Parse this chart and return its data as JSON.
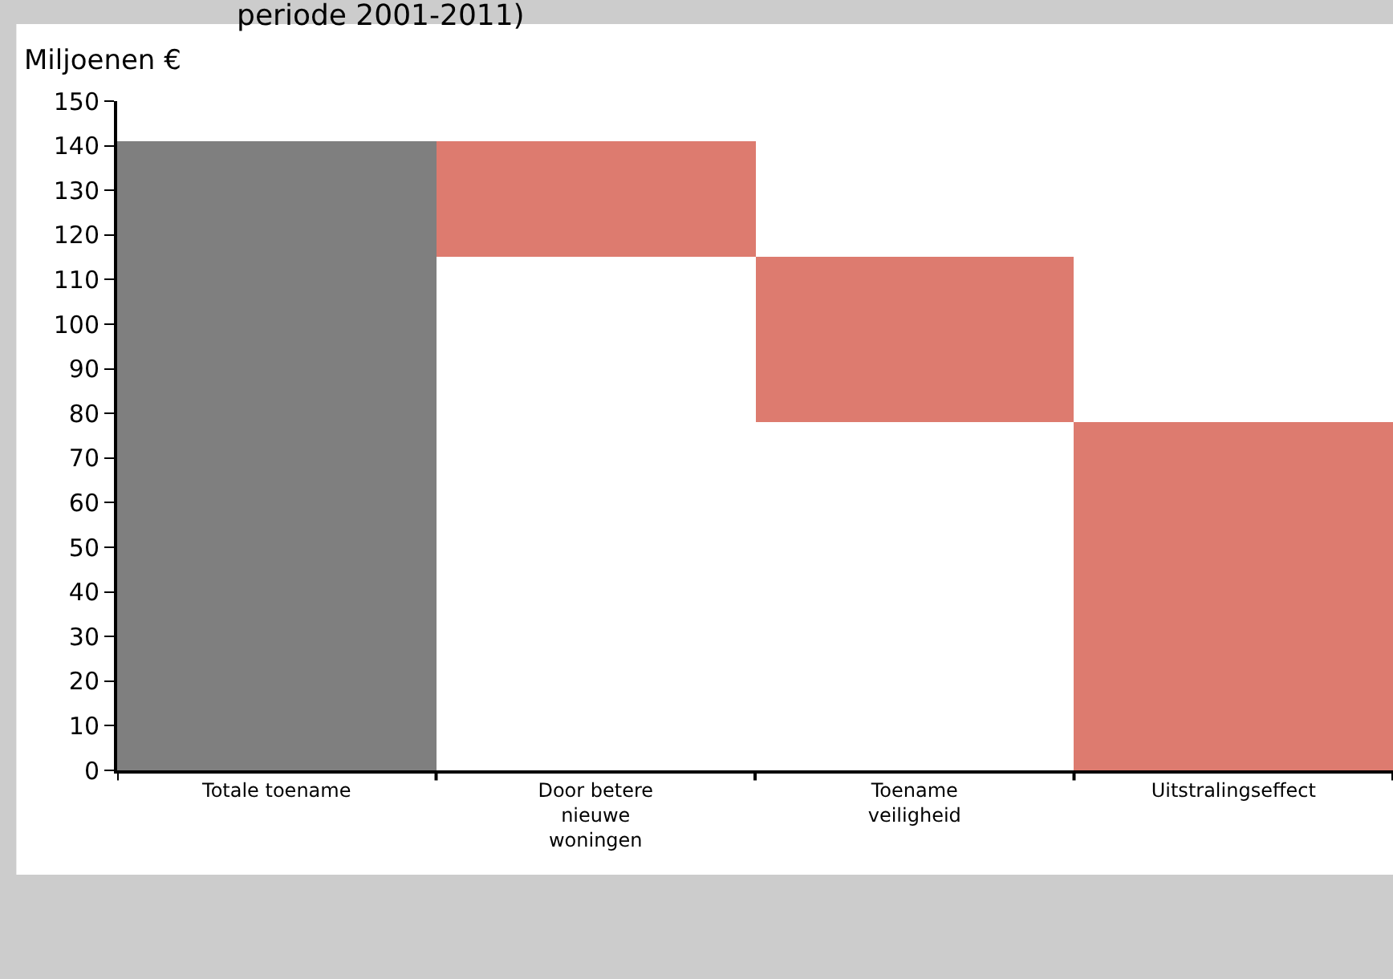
{
  "chart_data": {
    "type": "bar",
    "title": "periode 2001-2011)",
    "ylabel": "Miljoenen €",
    "categories": [
      "Totale toename",
      "Door betere nieuwe woningen",
      "Toename veiligheid",
      "Uitstralingseffect"
    ],
    "values": [
      141,
      26,
      37,
      78
    ],
    "base": [
      0,
      115,
      78,
      0
    ],
    "colors": [
      "#7f7f7f",
      "#dd7b6f",
      "#dd7b6f",
      "#dd7b6f"
    ],
    "ylim": [
      0,
      150
    ],
    "yticks": [
      0,
      10,
      20,
      30,
      40,
      50,
      60,
      70,
      80,
      90,
      100,
      110,
      120,
      130,
      140,
      150
    ],
    "grid": false
  }
}
